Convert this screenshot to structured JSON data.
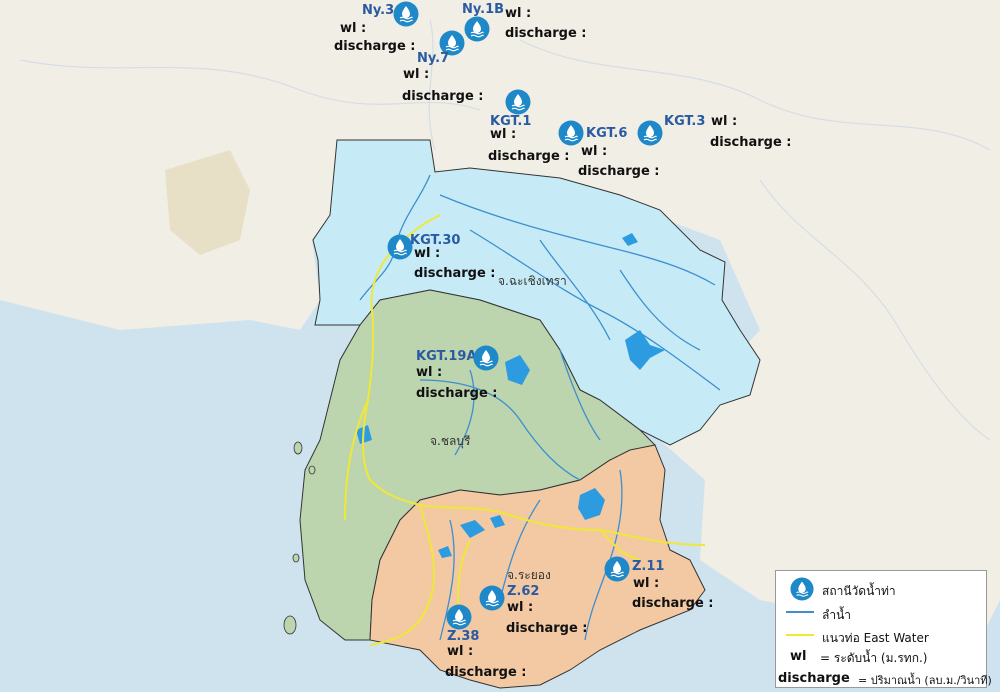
{
  "map": {
    "provinces": {
      "chachoengsao": "จ.ฉะเชิงเทรา",
      "chonburi": "จ.ชลบุรี",
      "rayong": "จ.ระยอง"
    },
    "colors": {
      "sea": "#cfe3ef",
      "land_outside": "#f1eee6",
      "chachoengsao_fill": "#c6ebf6",
      "chonburi_fill": "#bcd5ae",
      "rayong_fill": "#f2c9a3",
      "river": "#3d8fd0",
      "pipeline": "#f0e838",
      "reservoir": "#2d9be0",
      "station": "#1e88c8"
    }
  },
  "stations": [
    {
      "name": "Ny.3",
      "wl": "wl :",
      "discharge": "discharge :"
    },
    {
      "name": "Ny.1B",
      "wl": "wl :",
      "discharge": "discharge :"
    },
    {
      "name": "Ny.7",
      "wl": "wl :",
      "discharge": "discharge :"
    },
    {
      "name": "KGT.1",
      "wl": "wl :",
      "discharge": "discharge :"
    },
    {
      "name": "KGT.6",
      "wl": "wl :",
      "discharge": "discharge :"
    },
    {
      "name": "KGT.3",
      "wl": "wl :",
      "discharge": "discharge :"
    },
    {
      "name": "KGT.30",
      "wl": "wl :",
      "discharge": "discharge :"
    },
    {
      "name": "KGT.19A",
      "wl": "wl :",
      "discharge": "discharge :"
    },
    {
      "name": "Z.11",
      "wl": "wl :",
      "discharge": "discharge :"
    },
    {
      "name": "Z.62",
      "wl": "wl :",
      "discharge": "discharge :"
    },
    {
      "name": "Z.38",
      "wl": "wl :",
      "discharge": "discharge :"
    }
  ],
  "legend": {
    "station": "สถานีวัดน้ำท่า",
    "river": "ลำน้ำ",
    "pipeline": "แนวท่อ East Water",
    "wl_key": "wl",
    "wl_def": "=  ระดับน้ำ (ม.รทก.)",
    "discharge_key": "discharge",
    "discharge_def": "= ปริมาณน้ำ (ลบ.ม./วินาที)"
  }
}
